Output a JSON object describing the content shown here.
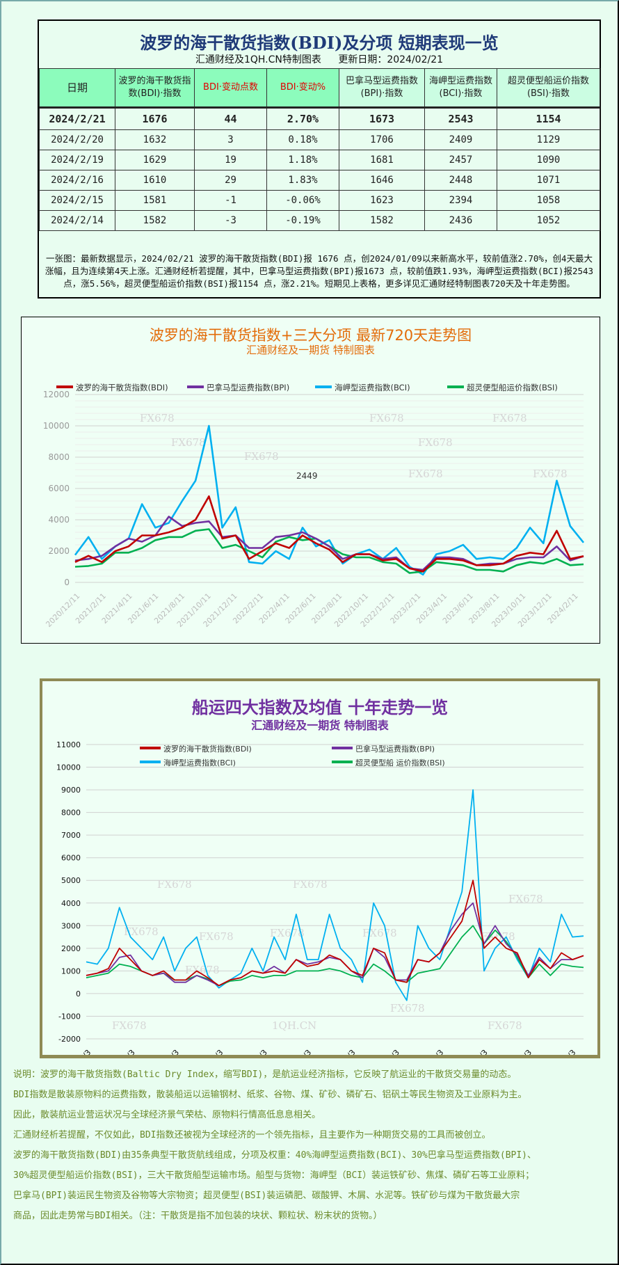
{
  "colors": {
    "bdi": "#c00000",
    "bpi": "#7030a0",
    "bci": "#00b0f0",
    "bsi": "#00b050",
    "title_blue": "#1f3a78",
    "chart1_title": "#e36c0a",
    "chart2_title": "#7030a0",
    "notes_text": "#6b8a2b"
  },
  "table": {
    "title": "波罗的海干散货指数(BDI)及分项 短期表现一览",
    "source": "汇通财经及1QH.CN特制图表",
    "update": "更新日期：2024/02/21",
    "headers": [
      "日期",
      "波罗的海干散货指数(BDI)·指数",
      "BDI·变动点数",
      "BDI·变动%",
      "巴拿马型运费指数(BPI)·指数",
      "海岬型运费指数(BCI)·指数",
      "超灵便型船运价指数(BSI)·指数"
    ],
    "rows": [
      [
        "2024/2/21",
        "1676",
        "44",
        "2.70%",
        "1673",
        "2543",
        "1154"
      ],
      [
        "2024/2/20",
        "1632",
        "3",
        "0.18%",
        "1706",
        "2409",
        "1129"
      ],
      [
        "2024/2/19",
        "1629",
        "19",
        "1.18%",
        "1681",
        "2457",
        "1090"
      ],
      [
        "2024/2/16",
        "1610",
        "29",
        "1.83%",
        "1646",
        "2448",
        "1071"
      ],
      [
        "2024/2/15",
        "1581",
        "-1",
        "-0.06%",
        "1623",
        "2394",
        "1058"
      ],
      [
        "2024/2/14",
        "1582",
        "-3",
        "-0.19%",
        "1582",
        "2436",
        "1052"
      ]
    ],
    "summary": "一张图：最新数据显示，2024/02/21 波罗的海干散货指数(BDI)报 1676 点，创2024/01/09以来新高水平，较前值涨2.70%，创4天最大涨幅，且为连续第4天上涨。汇通财经析若提醒，其中，巴拿马型运费指数(BPI)报1673 点，较前值跌1.93%，海岬型运费指数(BCI)报2543 点，涨5.56%，超灵便型船运价指数(BSI)报1154 点，涨2.21%。短期见上表格，更多详见汇通财经特制图表720天及十年走势图。"
  },
  "chart_data": [
    {
      "type": "line",
      "title": "波罗的海干散货指数+三大分项  最新720天走势图",
      "subtitle": "汇通财经及一期货  特制图表",
      "legend_position": "top",
      "grid": true,
      "ylim": [
        0,
        12000
      ],
      "yticks": [
        "0",
        "2000",
        "4000",
        "6000",
        "8000",
        "10000",
        "12000"
      ],
      "xtick_labels": [
        "2020/12/11",
        "2021/2/11",
        "2021/4/11",
        "2021/6/11",
        "2021/8/11",
        "2021/10/11",
        "2021/12/11",
        "2022/2/11",
        "2022/4/11",
        "2022/6/11",
        "2022/8/11",
        "2022/10/11",
        "2022/12/11",
        "2023/2/11",
        "2023/4/11",
        "2023/6/11",
        "2023/8/11",
        "2023/10/11",
        "2023/12/11",
        "2024/2/11"
      ],
      "annotation": "2449",
      "watermark": "FX678",
      "x": [
        "2020-12",
        "2021-01",
        "2021-02",
        "2021-03",
        "2021-04",
        "2021-05",
        "2021-06",
        "2021-07",
        "2021-08",
        "2021-09",
        "2021-10",
        "2021-11",
        "2021-12",
        "2022-01",
        "2022-02",
        "2022-03",
        "2022-04",
        "2022-05",
        "2022-06",
        "2022-07",
        "2022-08",
        "2022-09",
        "2022-10",
        "2022-11",
        "2022-12",
        "2023-01",
        "2023-02",
        "2023-03",
        "2023-04",
        "2023-05",
        "2023-06",
        "2023-07",
        "2023-08",
        "2023-09",
        "2023-10",
        "2023-11",
        "2023-12",
        "2024-01",
        "2024-02-21"
      ],
      "series": [
        {
          "name": "波罗的海干散货指数(BDI)",
          "key": "bdi",
          "values": [
            1300,
            1700,
            1300,
            2000,
            2300,
            3000,
            3000,
            3200,
            3500,
            4000,
            5500,
            2800,
            3000,
            1500,
            2000,
            2500,
            2200,
            3000,
            2500,
            2100,
            1300,
            1800,
            1800,
            1400,
            1500,
            900,
            700,
            1500,
            1500,
            1400,
            1100,
            1100,
            1200,
            1700,
            1900,
            1800,
            3300,
            1500,
            1676
          ]
        },
        {
          "name": "巴拿马型运费指数(BPI)",
          "key": "bpi",
          "values": [
            1400,
            1500,
            1700,
            2300,
            2800,
            2600,
            3000,
            4200,
            3600,
            3800,
            3900,
            2900,
            3000,
            2200,
            2200,
            2900,
            3000,
            3200,
            2800,
            2300,
            1500,
            1800,
            1800,
            1500,
            1600,
            900,
            800,
            1600,
            1600,
            1500,
            1100,
            1200,
            1200,
            1500,
            1600,
            1600,
            2300,
            1400,
            1673
          ]
        },
        {
          "name": "海岬型运费指数(BCI)",
          "key": "bci",
          "values": [
            1750,
            2900,
            1500,
            2300,
            2800,
            5000,
            3500,
            3800,
            5200,
            6500,
            10000,
            3500,
            4800,
            1300,
            1200,
            2000,
            1500,
            3500,
            2300,
            2700,
            1200,
            1800,
            2100,
            1500,
            2200,
            1000,
            500,
            1800,
            2000,
            2400,
            1500,
            1600,
            1500,
            2200,
            3500,
            2500,
            6500,
            3600,
            2543
          ]
        },
        {
          "name": "超灵便型船运价指数(BSI)",
          "key": "bsi",
          "values": [
            1000,
            1050,
            1200,
            1900,
            1900,
            2200,
            2700,
            2900,
            2900,
            3300,
            3400,
            2200,
            2400,
            2000,
            1600,
            2600,
            2900,
            2700,
            2800,
            2300,
            1800,
            1600,
            1600,
            1300,
            1200,
            600,
            700,
            1300,
            1200,
            1100,
            800,
            800,
            700,
            1100,
            1300,
            1200,
            1500,
            1100,
            1154
          ]
        }
      ]
    },
    {
      "type": "line",
      "title": "船运四大指数及均值 十年走势一览",
      "subtitle": "汇通财经及一期货 特制图表",
      "legend_position": "top",
      "grid": true,
      "ylim": [
        -2000,
        11000
      ],
      "yticks": [
        "-2000",
        "-1000",
        "0",
        "1000",
        "2000",
        "3000",
        "4000",
        "5000",
        "6000",
        "7000",
        "8000",
        "9000",
        "10000",
        "11000"
      ],
      "xtick_labels": [
        "2013/1/3",
        "2014/1/3",
        "2015/1/3",
        "2016/1/3",
        "2017/1/3",
        "2018/1/3",
        "2019/1/3",
        "2020/1/3",
        "2021/1/3",
        "2022/1/3",
        "2023/1/3",
        "2024/1/3"
      ],
      "watermarks": [
        "FX678",
        "1QH.CN"
      ],
      "x": [
        "2013-01",
        "2013-04",
        "2013-07",
        "2013-10",
        "2014-01",
        "2014-04",
        "2014-07",
        "2014-10",
        "2015-01",
        "2015-04",
        "2015-07",
        "2015-10",
        "2016-01",
        "2016-04",
        "2016-07",
        "2016-10",
        "2017-01",
        "2017-04",
        "2017-07",
        "2017-10",
        "2018-01",
        "2018-04",
        "2018-07",
        "2018-10",
        "2019-01",
        "2019-04",
        "2019-07",
        "2019-10",
        "2020-01",
        "2020-04",
        "2020-07",
        "2020-10",
        "2021-01",
        "2021-04",
        "2021-07",
        "2021-10",
        "2022-01",
        "2022-04",
        "2022-07",
        "2022-10",
        "2023-01",
        "2023-04",
        "2023-07",
        "2023-10",
        "2024-01",
        "2024-02-21"
      ],
      "series": [
        {
          "name": "波罗的海干散货指数(BDI)",
          "key": "bdi",
          "values": [
            800,
            900,
            1100,
            2000,
            1500,
            1000,
            800,
            1000,
            600,
            600,
            1000,
            700,
            350,
            600,
            700,
            1000,
            900,
            1000,
            900,
            1500,
            1200,
            1300,
            1700,
            1500,
            1000,
            800,
            2000,
            1800,
            600,
            500,
            1500,
            1400,
            1800,
            2500,
            3200,
            5000,
            2000,
            2500,
            2000,
            1800,
            700,
            1500,
            1100,
            1800,
            1500,
            1676
          ]
        },
        {
          "name": "巴拿马型运费指数(BPI)",
          "key": "bpi",
          "values": [
            800,
            900,
            1000,
            1600,
            1700,
            1000,
            800,
            900,
            500,
            500,
            800,
            600,
            350,
            600,
            700,
            1000,
            900,
            1200,
            900,
            1500,
            1300,
            1400,
            1600,
            1500,
            1000,
            700,
            2000,
            1600,
            600,
            600,
            1500,
            1400,
            1800,
            2800,
            3500,
            4000,
            2200,
            3000,
            2200,
            1700,
            800,
            1600,
            1100,
            1500,
            1500,
            1673
          ]
        },
        {
          "name": "海岬型运费指数(BCI)",
          "key": "bci",
          "values": [
            1400,
            1300,
            2000,
            3800,
            2500,
            2000,
            1500,
            2500,
            1000,
            2000,
            2500,
            800,
            250,
            600,
            900,
            2000,
            1000,
            2500,
            1500,
            3500,
            1500,
            1500,
            3500,
            2000,
            1500,
            500,
            4000,
            3000,
            500,
            -300,
            3000,
            2000,
            1500,
            3000,
            4500,
            9000,
            1000,
            2000,
            2500,
            1500,
            700,
            2000,
            1400,
            3500,
            2500,
            2543
          ]
        },
        {
          "name": "超灵便型船 运价指数(BSI)",
          "key": "bsi",
          "values": [
            700,
            800,
            900,
            1300,
            1200,
            1000,
            800,
            900,
            600,
            600,
            800,
            650,
            350,
            550,
            600,
            800,
            700,
            800,
            800,
            1000,
            1000,
            1000,
            1100,
            1000,
            800,
            700,
            1300,
            1000,
            600,
            500,
            900,
            1000,
            1100,
            1800,
            2500,
            3000,
            2200,
            2800,
            2300,
            1600,
            700,
            1300,
            800,
            1300,
            1200,
            1154
          ]
        }
      ]
    }
  ],
  "notes": [
    "说明：波罗的海干散货指数(Baltic Dry Index，缩写BDI)，是航运业经济指标，它反映了航运业的干散货交易量的动态。",
    "BDI指数是散装原物料的运费指数，散装船运以运输钢材、纸浆、谷物、煤、矿砂、磷矿石、铝矾土等民生物资及工业原料为主。",
    "因此，散装航运业营运状况与全球经济景气荣枯、原物料行情高低息息相关。",
    "汇通财经析若提醒，不仅如此，BDI指数还被视为全球经济的一个领先指标，且主要作为一种期货交易的工具而被创立。",
    "波罗的海干散货指数(BDI)由35条典型干散货航线组成，分项及权重：40%海岬型运费指数(BCI)、30%巴拿马型运费指数(BPI)、",
    "30%超灵便型船运价指数(BSI)，三大干散货船型运输市场。船型与货物：海岬型（BCI）装运铁矿砂、焦煤、磷矿石等工业原料；",
    "巴拿马(BPI)装运民生物资及谷物等大宗物资；超灵便型(BSI)装运磷肥、碳酸钾、木屑、水泥等。铁矿砂与煤为干散货最大宗",
    "商品，因此走势常与BDI相关。（注：干散货是指不加包装的块状、颗粒状、粉末状的货物。）"
  ]
}
